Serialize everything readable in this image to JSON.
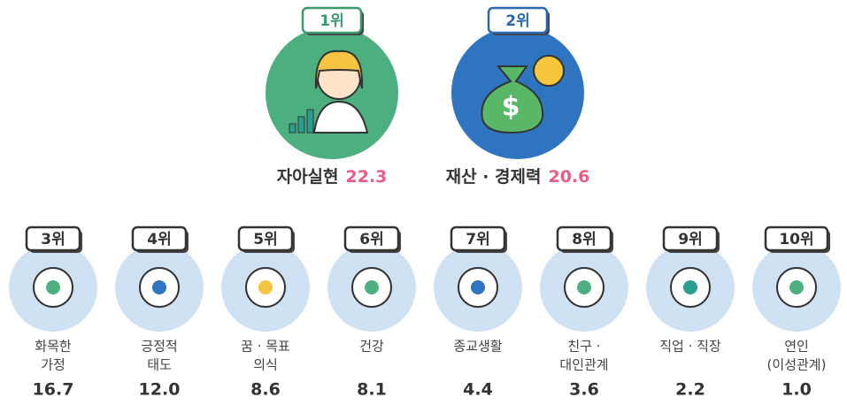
{
  "top": [
    {
      "rank": "1위",
      "name": "자아실현",
      "value": "22.3"
    },
    {
      "rank": "2위",
      "name": "재산 · 경제력",
      "value": "20.6"
    }
  ],
  "items": [
    {
      "rank": "3위",
      "name": [
        "화목한",
        "가정"
      ],
      "value": "16.7"
    },
    {
      "rank": "4위",
      "name": [
        "긍정적",
        "태도"
      ],
      "value": "12.0"
    },
    {
      "rank": "5위",
      "name": [
        "꿈 · 목표",
        "의식"
      ],
      "value": "8.6"
    },
    {
      "rank": "6위",
      "name": [
        "건강"
      ],
      "value": "8.1"
    },
    {
      "rank": "7위",
      "name": [
        "종교생활"
      ],
      "value": "4.4"
    },
    {
      "rank": "8위",
      "name": [
        "친구 ·",
        "대인관계"
      ],
      "value": "3.6"
    },
    {
      "rank": "9위",
      "name": [
        "직업 · 직장"
      ],
      "value": "2.2"
    },
    {
      "rank": "10위",
      "name": [
        "연인",
        "(이성관계)"
      ],
      "value": "1.0"
    }
  ]
}
